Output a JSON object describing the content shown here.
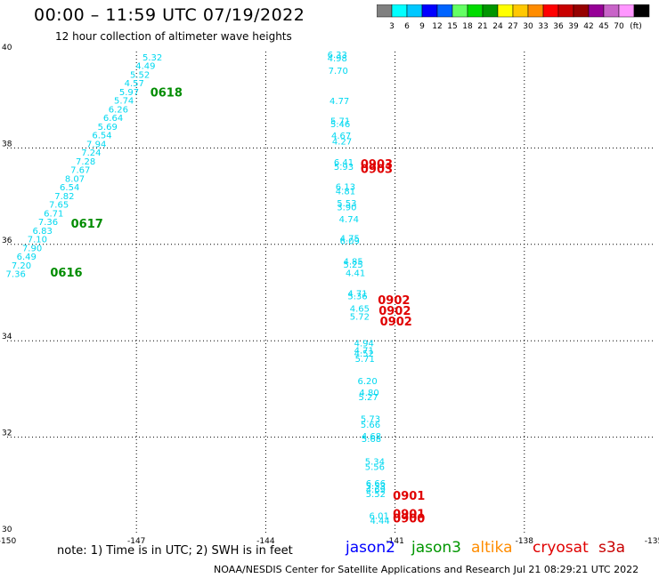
{
  "header": {
    "title": "00:00 – 11:59 UTC 07/19/2022",
    "subtitle": "12 hour collection of altimeter wave heights"
  },
  "colorbar": {
    "colors": [
      "#808080",
      "#00ffff",
      "#00c8ff",
      "#0000ff",
      "#0064ff",
      "#64ff64",
      "#00dc00",
      "#009600",
      "#ffff00",
      "#ffc800",
      "#ff8c00",
      "#ff0000",
      "#c80000",
      "#960000",
      "#960096",
      "#c864c8",
      "#ff96ff",
      "#000000"
    ],
    "labels": [
      "3",
      "6",
      "9",
      "12",
      "15",
      "18",
      "21",
      "24",
      "27",
      "30",
      "33",
      "36",
      "39",
      "42",
      "45",
      "70",
      "(ft)"
    ]
  },
  "note": "note: 1) Time is in UTC; 2) SWH is in feet",
  "legend": [
    {
      "name": "jason2",
      "color": "#0000ff"
    },
    {
      "name": "jason3",
      "color": "#009600"
    },
    {
      "name": "altika",
      "color": "#ff8c00"
    },
    {
      "name": "cryosat",
      "color": "#e00000"
    },
    {
      "name": "s3a",
      "color": "#c80000"
    }
  ],
  "footer": "NOAA/NESDIS Center for Satellite Applications and Research   Jul 21 08:29:21 UTC 2022",
  "chart_data": {
    "type": "scatter",
    "title": "00:00 – 11:59 UTC 07/19/2022",
    "xlim": [
      -150,
      -135
    ],
    "ylim": [
      30,
      40
    ],
    "xticks": [
      "-150",
      "-147",
      "-144",
      "-141",
      "-138",
      "-135"
    ],
    "yticks": [
      "30",
      "32",
      "34",
      "36",
      "38",
      "40"
    ],
    "grid": true,
    "series": [
      {
        "color": "#00d8f0",
        "points": [
          {
            "x": -146.86,
            "y": 39.82,
            "label": "5.32"
          },
          {
            "x": -147.02,
            "y": 39.64,
            "label": "4.49"
          },
          {
            "x": -147.15,
            "y": 39.46,
            "label": "5.52"
          },
          {
            "x": -147.28,
            "y": 39.28,
            "label": "4.57"
          },
          {
            "x": -147.4,
            "y": 39.1,
            "label": "5.97"
          },
          {
            "x": -147.52,
            "y": 38.92,
            "label": "5.74"
          },
          {
            "x": -147.65,
            "y": 38.74,
            "label": "6.26"
          },
          {
            "x": -147.77,
            "y": 38.56,
            "label": "6.64"
          },
          {
            "x": -147.9,
            "y": 38.38,
            "label": "5.69"
          },
          {
            "x": -148.03,
            "y": 38.2,
            "label": "6.54"
          },
          {
            "x": -148.16,
            "y": 38.02,
            "label": "7.94"
          },
          {
            "x": -148.28,
            "y": 37.84,
            "label": "7.24"
          },
          {
            "x": -148.41,
            "y": 37.66,
            "label": "7.28"
          },
          {
            "x": -148.53,
            "y": 37.48,
            "label": "7.67"
          },
          {
            "x": -148.66,
            "y": 37.3,
            "label": "8.07"
          },
          {
            "x": -148.78,
            "y": 37.12,
            "label": "6.54"
          },
          {
            "x": -148.9,
            "y": 36.94,
            "label": "7.82"
          },
          {
            "x": -149.03,
            "y": 36.76,
            "label": "7.65"
          },
          {
            "x": -149.15,
            "y": 36.58,
            "label": "6.71"
          },
          {
            "x": -149.28,
            "y": 36.4,
            "label": "7.36"
          },
          {
            "x": -149.41,
            "y": 36.22,
            "label": "6.83"
          },
          {
            "x": -149.53,
            "y": 36.04,
            "label": "7.10"
          },
          {
            "x": -149.65,
            "y": 35.86,
            "label": "7.90"
          },
          {
            "x": -149.78,
            "y": 35.68,
            "label": "6.49"
          },
          {
            "x": -149.9,
            "y": 35.5,
            "label": "7.20"
          },
          {
            "x": -150.03,
            "y": 35.32,
            "label": "7.36"
          },
          {
            "x": -142.57,
            "y": 39.87,
            "label": "6.33"
          },
          {
            "x": -142.57,
            "y": 39.8,
            "label": "4.98"
          },
          {
            "x": -142.55,
            "y": 39.54,
            "label": "7.70"
          },
          {
            "x": -142.52,
            "y": 38.91,
            "label": "4.77"
          },
          {
            "x": -142.5,
            "y": 38.5,
            "label": "5.71"
          },
          {
            "x": -142.5,
            "y": 38.43,
            "label": "5.46"
          },
          {
            "x": -142.48,
            "y": 38.19,
            "label": "4.67"
          },
          {
            "x": -142.46,
            "y": 38.07,
            "label": "4.27"
          },
          {
            "x": -142.42,
            "y": 37.64,
            "label": "6.41"
          },
          {
            "x": -142.42,
            "y": 37.55,
            "label": "5.93"
          },
          {
            "x": -142.38,
            "y": 37.13,
            "label": "6.13"
          },
          {
            "x": -142.38,
            "y": 37.04,
            "label": "4.81"
          },
          {
            "x": -142.35,
            "y": 36.79,
            "label": "5.53"
          },
          {
            "x": -142.35,
            "y": 36.71,
            "label": "3.90"
          },
          {
            "x": -142.3,
            "y": 36.46,
            "label": "4.74"
          },
          {
            "x": -142.28,
            "y": 36.06,
            "label": "4.75"
          },
          {
            "x": -142.28,
            "y": 36.01,
            "label": "6.09"
          },
          {
            "x": -142.2,
            "y": 35.58,
            "label": "4.85"
          },
          {
            "x": -142.2,
            "y": 35.52,
            "label": "5.25"
          },
          {
            "x": -142.15,
            "y": 35.34,
            "label": "4.41"
          },
          {
            "x": -142.1,
            "y": 34.92,
            "label": "4.71"
          },
          {
            "x": -142.1,
            "y": 34.86,
            "label": "5.36"
          },
          {
            "x": -142.05,
            "y": 34.6,
            "label": "4.65"
          },
          {
            "x": -142.05,
            "y": 34.44,
            "label": "5.72"
          },
          {
            "x": -141.95,
            "y": 33.88,
            "label": "4.94"
          },
          {
            "x": -141.95,
            "y": 33.74,
            "label": "4.71"
          },
          {
            "x": -141.95,
            "y": 33.67,
            "label": "4.52"
          },
          {
            "x": -141.93,
            "y": 33.56,
            "label": "5.71"
          },
          {
            "x": -141.87,
            "y": 33.1,
            "label": "6.20"
          },
          {
            "x": -141.83,
            "y": 32.86,
            "label": "4.80"
          },
          {
            "x": -141.85,
            "y": 32.77,
            "label": "5.27"
          },
          {
            "x": -141.8,
            "y": 32.32,
            "label": "5.73"
          },
          {
            "x": -141.8,
            "y": 32.2,
            "label": "5.66"
          },
          {
            "x": -141.78,
            "y": 31.96,
            "label": "4.68"
          },
          {
            "x": -141.78,
            "y": 31.9,
            "label": "5.68"
          },
          {
            "x": -141.7,
            "y": 31.43,
            "label": "5.34"
          },
          {
            "x": -141.7,
            "y": 31.32,
            "label": "5.56"
          },
          {
            "x": -141.68,
            "y": 30.98,
            "label": "6.66"
          },
          {
            "x": -141.68,
            "y": 30.92,
            "label": "5.53"
          },
          {
            "x": -141.68,
            "y": 30.85,
            "label": "4.69"
          },
          {
            "x": -141.68,
            "y": 30.76,
            "label": "5.52"
          },
          {
            "x": -141.6,
            "y": 30.3,
            "label": "6.01"
          },
          {
            "x": -141.58,
            "y": 30.2,
            "label": "4.44"
          }
        ]
      },
      {
        "color": "#008c00",
        "points": [
          {
            "x": -146.68,
            "y": 39.07,
            "label": "0618"
          },
          {
            "x": -148.52,
            "y": 36.35,
            "label": "0617"
          },
          {
            "x": -149.0,
            "y": 35.33,
            "label": "0616"
          }
        ]
      },
      {
        "color": "#e00000",
        "points": [
          {
            "x": -141.8,
            "y": 37.58,
            "label": "0903"
          },
          {
            "x": -141.8,
            "y": 37.48,
            "label": "0903"
          },
          {
            "x": -141.4,
            "y": 34.76,
            "label": "0902"
          },
          {
            "x": -141.38,
            "y": 34.54,
            "label": "0902"
          },
          {
            "x": -141.35,
            "y": 34.32,
            "label": "0902"
          },
          {
            "x": -141.05,
            "y": 30.7,
            "label": "0901"
          },
          {
            "x": -141.05,
            "y": 30.32,
            "label": "0901"
          },
          {
            "x": -141.05,
            "y": 30.23,
            "label": "0900"
          }
        ]
      }
    ]
  }
}
